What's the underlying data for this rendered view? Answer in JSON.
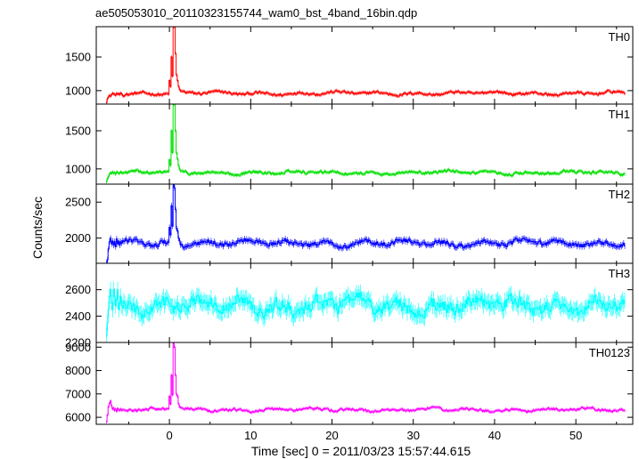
{
  "chart_data": {
    "type": "line",
    "title": "ae505053010_20110323155744_wam0_bst_4band_16bin.qdp",
    "xlabel": "Time [sec] 0 = 2011/03/23 15:57:44.615",
    "ylabel": "Counts/sec",
    "xlim": [
      -9,
      57
    ],
    "x_ticks": [
      "0",
      "10",
      "20",
      "30",
      "40",
      "50"
    ],
    "x_tick_values": [
      0,
      10,
      20,
      30,
      40,
      50
    ],
    "grid": false,
    "panels": [
      {
        "name": "TH0",
        "color": "#ff0000",
        "ylim": [
          800,
          1950
        ],
        "y_ticks": [
          1000,
          1500
        ],
        "y_tick_labels": [
          "1000",
          "1500"
        ],
        "baseline": 960,
        "noise": 45,
        "start": -7.8,
        "start_values": [
          820,
          880,
          905,
          930,
          915,
          940,
          960,
          950,
          945,
          930,
          960,
          945,
          955,
          940,
          965,
          950
        ],
        "burst": [
          [
            0.0,
            1150
          ],
          [
            0.25,
            1500
          ],
          [
            0.45,
            1950
          ],
          [
            0.6,
            1950
          ],
          [
            0.75,
            1550
          ],
          [
            0.95,
            1150
          ],
          [
            1.2,
            1020
          ]
        ]
      },
      {
        "name": "TH1",
        "color": "#00e000",
        "ylim": [
          800,
          1850
        ],
        "y_ticks": [
          1000,
          1500
        ],
        "y_tick_labels": [
          "1000",
          "1500"
        ],
        "baseline": 950,
        "noise": 40,
        "start": -7.8,
        "start_values": [
          830,
          870,
          900,
          930,
          950,
          940,
          960,
          945,
          950,
          930,
          960,
          955,
          940,
          945,
          960,
          950
        ],
        "burst": [
          [
            0.0,
            1120
          ],
          [
            0.25,
            1500
          ],
          [
            0.45,
            1850
          ],
          [
            0.6,
            1850
          ],
          [
            0.75,
            1500
          ],
          [
            0.95,
            1130
          ],
          [
            1.2,
            1000
          ]
        ]
      },
      {
        "name": "TH2",
        "color": "#0000ff",
        "ylim": [
          1650,
          2750
        ],
        "y_ticks": [
          2000,
          2500
        ],
        "y_tick_labels": [
          "2000",
          "2500"
        ],
        "baseline": 1930,
        "noise": 75,
        "start": -7.8,
        "start_values": [
          1650,
          1700,
          1850,
          1950,
          2000,
          1920,
          1960,
          1900,
          1950,
          1880,
          1990,
          1920,
          1960,
          1900,
          1950,
          1930
        ],
        "burst": [
          [
            0.0,
            2150
          ],
          [
            0.25,
            2450
          ],
          [
            0.45,
            2750
          ],
          [
            0.6,
            2700
          ],
          [
            0.75,
            2400
          ],
          [
            0.95,
            2100
          ],
          [
            1.2,
            1960
          ]
        ]
      },
      {
        "name": "TH3",
        "color": "#00ffff",
        "ylim": [
          2200,
          2800
        ],
        "y_ticks": [
          2200,
          2400,
          2600
        ],
        "y_tick_labels": [
          "2200",
          "2400",
          "2600"
        ],
        "baseline": 2480,
        "noise": 110,
        "start": -7.8,
        "start_values": [
          2250,
          2350,
          2450,
          2550,
          2600,
          2500,
          2450,
          2600,
          2550,
          2480,
          2520,
          2600,
          2450,
          2500,
          2550,
          2480
        ],
        "burst": []
      },
      {
        "name": "TH0123",
        "color": "#ff00ff",
        "ylim": [
          5700,
          9200
        ],
        "y_ticks": [
          6000,
          7000,
          8000,
          9000
        ],
        "y_tick_labels": [
          "6000",
          "7000",
          "8000",
          "9000"
        ],
        "baseline": 6320,
        "noise": 120,
        "start": -7.8,
        "start_values": [
          5800,
          6100,
          6450,
          6600,
          6700,
          6500,
          6350,
          6400,
          6300,
          6350,
          6250,
          6380,
          6320,
          6300,
          6350,
          6300
        ],
        "burst": [
          [
            0.0,
            6900
          ],
          [
            0.25,
            7800
          ],
          [
            0.45,
            9200
          ],
          [
            0.6,
            9000
          ],
          [
            0.75,
            7800
          ],
          [
            0.95,
            6900
          ],
          [
            1.2,
            6450
          ]
        ]
      }
    ]
  }
}
